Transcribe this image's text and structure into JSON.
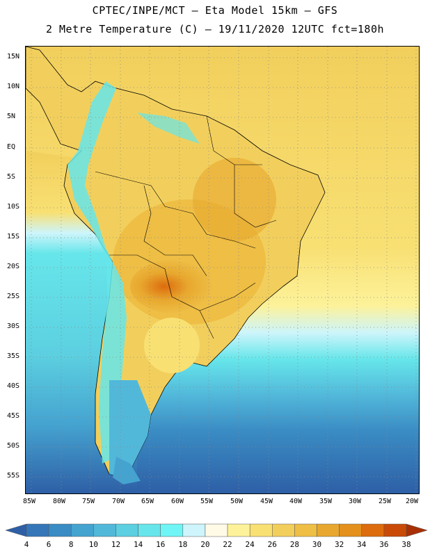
{
  "header": {
    "line1": "CPTEC/INPE/MCT –  Eta Model 15km – GFS",
    "line2": "2 Metre Temperature (C) – 19/11/2020 12UTC fct=180h"
  },
  "axes": {
    "lat_labels": [
      "15N",
      "10N",
      "5N",
      "EQ",
      "5S",
      "10S",
      "15S",
      "20S",
      "25S",
      "30S",
      "35S",
      "40S",
      "45S",
      "50S",
      "55S"
    ],
    "lon_labels": [
      "85W",
      "80W",
      "75W",
      "70W",
      "65W",
      "60W",
      "55W",
      "50W",
      "45W",
      "40W",
      "35W",
      "30W",
      "25W",
      "20W"
    ]
  },
  "legend": {
    "ticks": [
      "4",
      "6",
      "8",
      "10",
      "12",
      "14",
      "16",
      "18",
      "20",
      "22",
      "24",
      "26",
      "28",
      "30",
      "32",
      "34",
      "36",
      "38"
    ],
    "colors": [
      "#2e5fa6",
      "#3476b8",
      "#3a8cc4",
      "#45a3d0",
      "#52b8da",
      "#5ccfe0",
      "#66e6ea",
      "#6ff5f5",
      "#cdf5fb",
      "#fffae6",
      "#fdf29a",
      "#f8e073",
      "#f2cf5c",
      "#eebe45",
      "#e8a82f",
      "#e3901c",
      "#dc6c0d",
      "#c94a07",
      "#a83004"
    ]
  }
}
